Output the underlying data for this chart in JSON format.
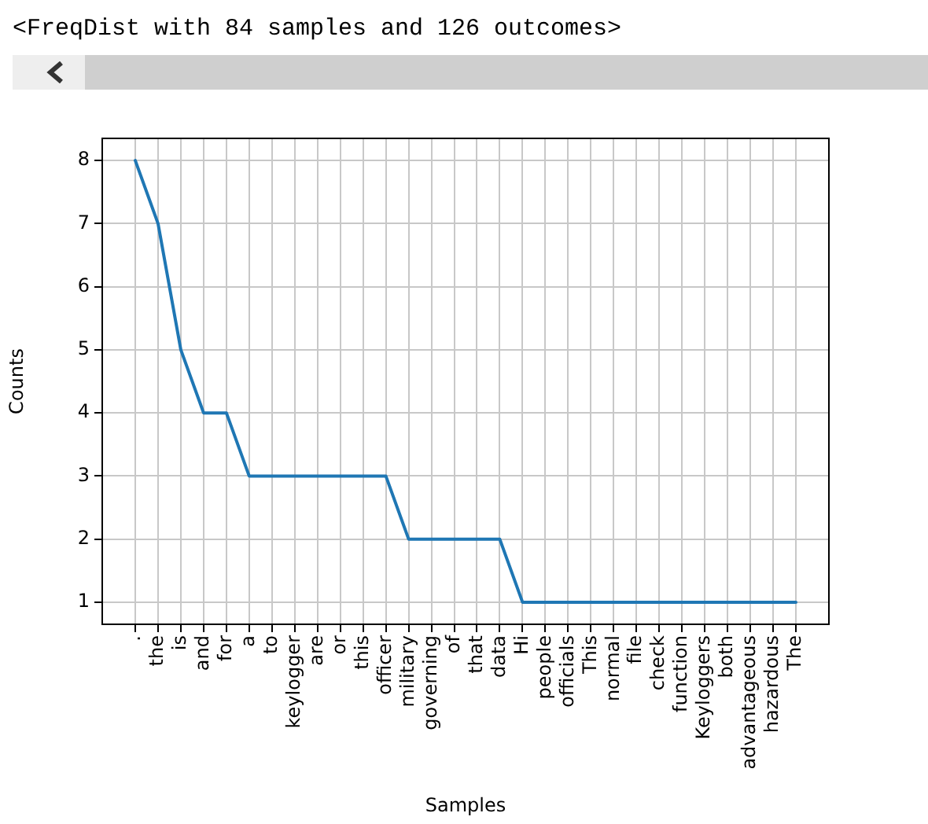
{
  "chart_data": {
    "type": "line",
    "title": "<FreqDist with 84 samples and 126 outcomes>",
    "xlabel": "Samples",
    "ylabel": "Counts",
    "categories": [
      ".",
      "the",
      "is",
      "and",
      "for",
      "a",
      "to",
      "keylogger",
      "are",
      "or",
      "this",
      "officer",
      "military",
      "governing",
      "of",
      "that",
      "data",
      "Hi",
      "people",
      "officials",
      "This",
      "normal",
      "file",
      "check",
      "function",
      "Keyloggers",
      "both",
      "advantageous",
      "hazardous",
      "The"
    ],
    "series": [
      {
        "color": "#1f77b4",
        "values": [
          8,
          7,
          5,
          4,
          4,
          3,
          3,
          3,
          3,
          3,
          3,
          3,
          2,
          2,
          2,
          2,
          2,
          1,
          1,
          1,
          1,
          1,
          1,
          1,
          1,
          1,
          1,
          1,
          1,
          1
        ]
      }
    ],
    "ylim": [
      0.65,
      8.35
    ],
    "yticks": [
      1,
      2,
      3,
      4,
      5,
      6,
      7,
      8
    ],
    "grid": true,
    "legend": false,
    "marker": "none",
    "line_style": "solid"
  }
}
